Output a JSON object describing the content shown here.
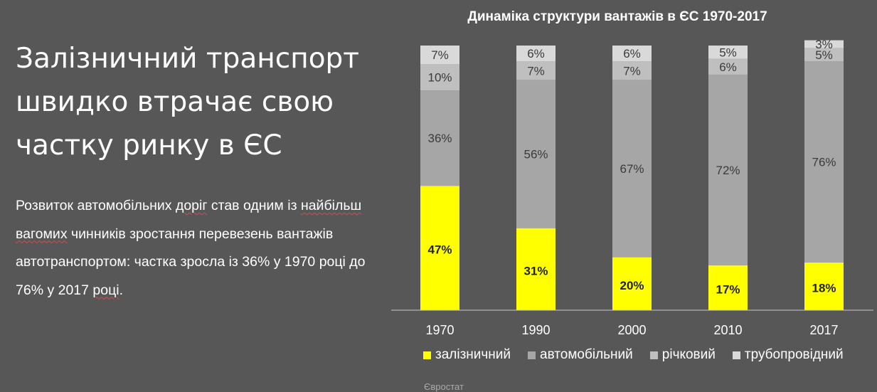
{
  "slide": {
    "headline": "Залізничний транспорт швидко втрачає свою частку ринку в ЄС",
    "body_segments": [
      {
        "text": "Розвиток автомобільних ",
        "flag": false
      },
      {
        "text": "доріг",
        "flag": true
      },
      {
        "text": " став одним із ",
        "flag": false
      },
      {
        "text": "найбільш вагомих",
        "flag": true
      },
      {
        "text": " чинників зростання перевезень вантажів автотранспортом: частка зросла із 36% у 1970 році до 76% у 2017 ",
        "flag": false
      },
      {
        "text": "році",
        "flag": true
      },
      {
        "text": ".",
        "flag": false
      }
    ],
    "source": "Євростат"
  },
  "chart_data": {
    "type": "bar",
    "stacked": true,
    "title": "Динаміка структури вантажів в ЄС 1970-2017",
    "categories": [
      "1970",
      "1990",
      "2000",
      "2010",
      "2017"
    ],
    "ylim": [
      0,
      100
    ],
    "grid": false,
    "legend_position": "bottom",
    "series": [
      {
        "name": "залізничний",
        "color": "#ffff00",
        "label_color": "#222222",
        "bold": true,
        "values": [
          47,
          31,
          20,
          17,
          18
        ],
        "labels": [
          "47%",
          "31%",
          "20%",
          "17%",
          "18%"
        ]
      },
      {
        "name": "автомобільний",
        "color": "#a6a6a6",
        "label_color": "#3a3a3a",
        "bold": false,
        "values": [
          36,
          56,
          67,
          72,
          76
        ],
        "labels": [
          "36%",
          "56%",
          "67%",
          "72%",
          "76%"
        ]
      },
      {
        "name": "річковий",
        "color": "#bfbfbf",
        "label_color": "#3a3a3a",
        "bold": false,
        "values": [
          10,
          7,
          7,
          6,
          5
        ],
        "labels": [
          "10%",
          "7%",
          "7%",
          "6%",
          "5%"
        ]
      },
      {
        "name": "трубопровідний",
        "color": "#d9d9d9",
        "label_color": "#3a3a3a",
        "bold": false,
        "values": [
          7,
          6,
          6,
          5,
          3
        ],
        "labels": [
          "7%",
          "6%",
          "6%",
          "5%",
          "3%"
        ]
      }
    ]
  }
}
